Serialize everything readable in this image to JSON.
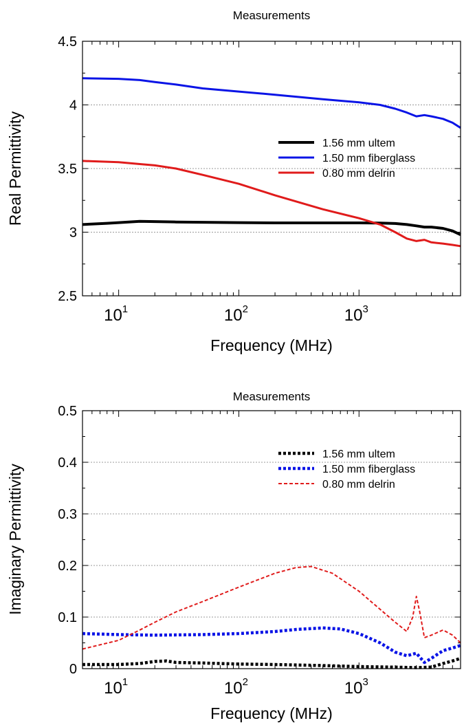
{
  "chart_data": [
    {
      "type": "line",
      "title": "Measurements",
      "xlabel": "Frequency (MHz)",
      "ylabel": "Real Permittivity",
      "xscale": "log",
      "xlim": [
        5,
        7000
      ],
      "ylim": [
        2.5,
        4.5
      ],
      "yticks": [
        "2.5",
        "3",
        "3.5",
        "4",
        "4.5"
      ],
      "xticks": [
        {
          "base": "10",
          "exp": "1"
        },
        {
          "base": "10",
          "exp": "2"
        },
        {
          "base": "10",
          "exp": "3"
        }
      ],
      "grid": "horizontal dotted",
      "legend_position": "right",
      "series": [
        {
          "name": "1.56 mm ultem",
          "color": "#000000",
          "dash": "solid",
          "x": [
            5,
            8,
            10,
            15,
            20,
            30,
            50,
            100,
            200,
            500,
            1000,
            1500,
            2000,
            2500,
            3000,
            3500,
            4000,
            5000,
            6000,
            7000
          ],
          "y": [
            3.06,
            3.07,
            3.075,
            3.085,
            3.083,
            3.08,
            3.078,
            3.075,
            3.073,
            3.073,
            3.073,
            3.072,
            3.068,
            3.06,
            3.05,
            3.04,
            3.04,
            3.03,
            3.01,
            2.98
          ]
        },
        {
          "name": "1.50 mm fiberglass",
          "color": "#0a14e6",
          "dash": "solid",
          "x": [
            5,
            10,
            15,
            20,
            30,
            50,
            100,
            200,
            500,
            1000,
            1500,
            2000,
            2500,
            3000,
            3500,
            4000,
            5000,
            6000,
            7000
          ],
          "y": [
            4.21,
            4.205,
            4.195,
            4.18,
            4.16,
            4.13,
            4.105,
            4.08,
            4.045,
            4.02,
            4.0,
            3.97,
            3.94,
            3.91,
            3.92,
            3.91,
            3.89,
            3.86,
            3.82
          ]
        },
        {
          "name": "0.80 mm delrin",
          "color": "#e01b1b",
          "dash": "solid",
          "x": [
            5,
            10,
            15,
            20,
            30,
            50,
            100,
            200,
            500,
            1000,
            1500,
            2000,
            2500,
            3000,
            3500,
            4000,
            5000,
            6000,
            7000
          ],
          "y": [
            3.56,
            3.55,
            3.535,
            3.525,
            3.5,
            3.45,
            3.38,
            3.29,
            3.18,
            3.11,
            3.06,
            3.0,
            2.95,
            2.93,
            2.94,
            2.92,
            2.91,
            2.9,
            2.89
          ]
        }
      ]
    },
    {
      "type": "line",
      "title": "Measurements",
      "xlabel": "Frequency (MHz)",
      "ylabel": "Imaginary Permittivity",
      "xscale": "log",
      "xlim": [
        5,
        7000
      ],
      "ylim": [
        0,
        0.5
      ],
      "yticks": [
        "0",
        "0.1",
        "0.2",
        "0.3",
        "0.4",
        "0.5"
      ],
      "xticks": [
        {
          "base": "10",
          "exp": "1"
        },
        {
          "base": "10",
          "exp": "2"
        },
        {
          "base": "10",
          "exp": "3"
        }
      ],
      "grid": "horizontal dotted",
      "legend_position": "top-right",
      "series": [
        {
          "name": "1.56 mm ultem",
          "color": "#000000",
          "dash": "dotted",
          "x": [
            5,
            10,
            15,
            20,
            25,
            30,
            50,
            100,
            200,
            500,
            1000,
            2000,
            3000,
            4000,
            5000,
            6000,
            7000
          ],
          "y": [
            0.008,
            0.008,
            0.01,
            0.014,
            0.015,
            0.012,
            0.011,
            0.009,
            0.008,
            0.006,
            0.004,
            0.003,
            0.002,
            0.003,
            0.01,
            0.015,
            0.02
          ]
        },
        {
          "name": "1.50 mm fiberglass",
          "color": "#0a14e6",
          "dash": "dotted",
          "x": [
            5,
            10,
            20,
            50,
            100,
            200,
            300,
            500,
            700,
            1000,
            1500,
            2000,
            2500,
            3000,
            3500,
            4000,
            5000,
            6000,
            7000
          ],
          "y": [
            0.068,
            0.066,
            0.065,
            0.066,
            0.068,
            0.072,
            0.076,
            0.079,
            0.077,
            0.068,
            0.05,
            0.032,
            0.025,
            0.03,
            0.012,
            0.02,
            0.035,
            0.04,
            0.045
          ]
        },
        {
          "name": "0.80 mm delrin",
          "color": "#e01b1b",
          "dash": "dashed",
          "x": [
            5,
            10,
            15,
            20,
            30,
            50,
            100,
            200,
            300,
            400,
            600,
            1000,
            1500,
            2000,
            2500,
            2800,
            3000,
            3200,
            3500,
            4000,
            5000,
            6000,
            7000
          ],
          "y": [
            0.038,
            0.055,
            0.075,
            0.09,
            0.11,
            0.13,
            0.158,
            0.185,
            0.196,
            0.198,
            0.185,
            0.15,
            0.115,
            0.09,
            0.072,
            0.1,
            0.14,
            0.11,
            0.06,
            0.065,
            0.075,
            0.065,
            0.05
          ]
        }
      ]
    }
  ]
}
